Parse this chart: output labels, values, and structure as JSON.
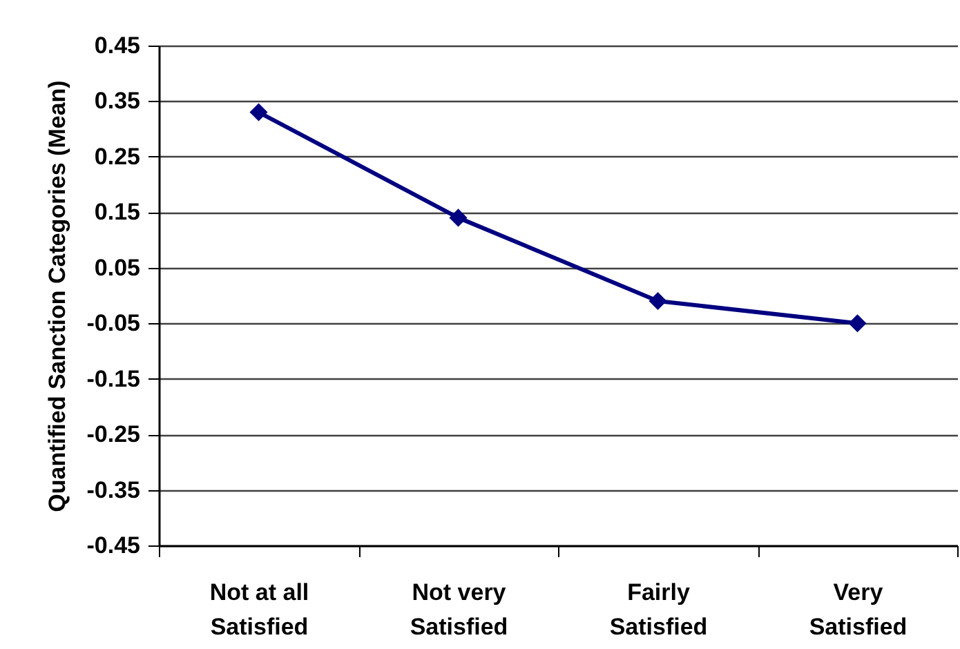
{
  "chart_data": {
    "type": "line",
    "ylabel": "Quantified Sanction Categories (Mean)",
    "categories": [
      "Not at all Satisfied",
      "Not very Satisfied",
      "Fairly Satisfied",
      "Very Satisfied"
    ],
    "values": [
      0.33,
      0.14,
      -0.01,
      -0.05
    ],
    "color": "#000080",
    "marker": "diamond",
    "line_style": "solid",
    "ylim": [
      -0.45,
      0.45
    ],
    "yticks": [
      -0.45,
      -0.35,
      -0.25,
      -0.15,
      -0.05,
      0.05,
      0.15,
      0.25,
      0.35,
      0.45
    ],
    "grid": "y"
  }
}
